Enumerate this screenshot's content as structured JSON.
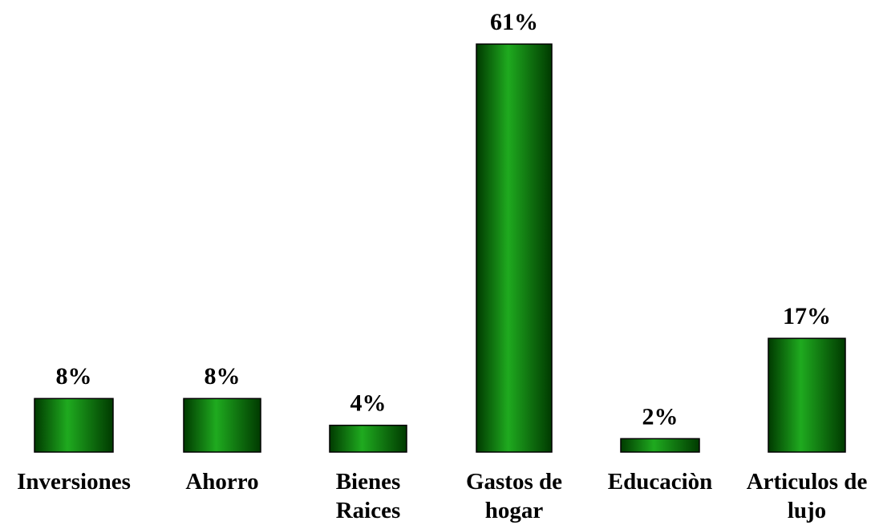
{
  "chart_data": {
    "type": "bar",
    "categories": [
      [
        "Inversiones"
      ],
      [
        "Ahorro"
      ],
      [
        "Bienes",
        "Raices"
      ],
      [
        "Gastos de",
        "hogar"
      ],
      [
        "Educaciòn"
      ],
      [
        "Articulos de",
        "lujo"
      ]
    ],
    "values": [
      8,
      8,
      4,
      61,
      2,
      17
    ],
    "data_labels": [
      "8%",
      "8%",
      "4%",
      "61%",
      "2%",
      "17%"
    ],
    "ylim": [
      0,
      61
    ],
    "grid": false,
    "legend": "none",
    "bar_color_dark": "#003a00",
    "bar_color_light": "#1faa1f",
    "bar_outline": "#000000"
  }
}
